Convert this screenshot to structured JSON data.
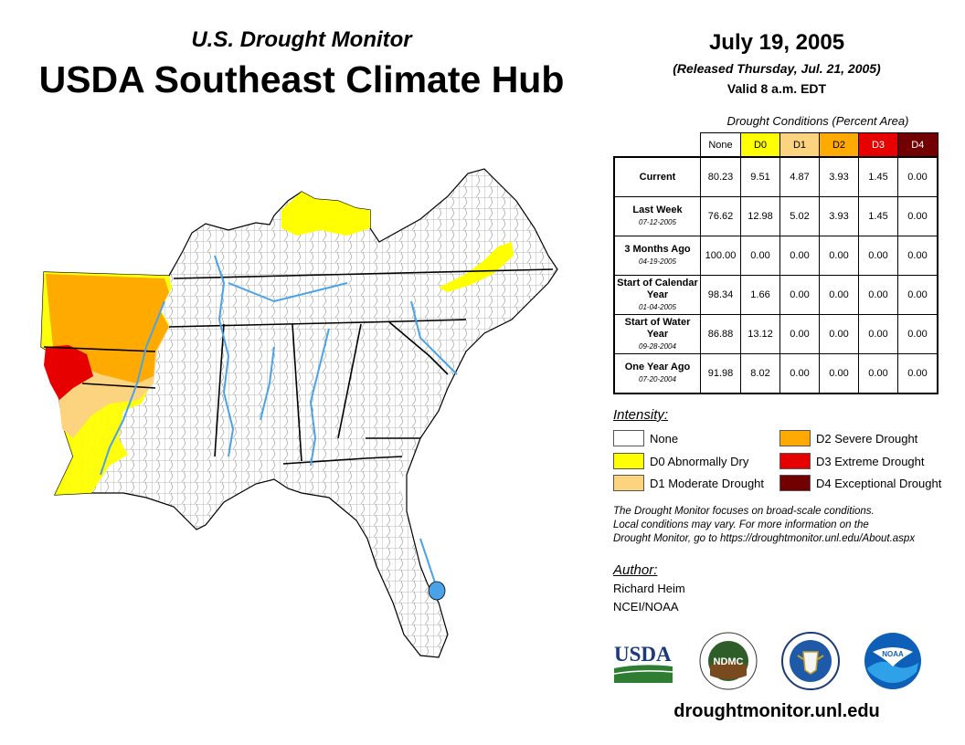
{
  "header": {
    "supertitle": "U.S. Drought Monitor",
    "title": "USDA Southeast Climate Hub",
    "date": "July 19, 2005",
    "released": "(Released Thursday, Jul. 21, 2005)",
    "valid": "Valid 8 a.m. EDT"
  },
  "table": {
    "caption": "Drought Conditions (Percent Area)",
    "columns": [
      "None",
      "D0",
      "D1",
      "D2",
      "D3",
      "D4"
    ],
    "column_colors": [
      "#ffffff",
      "#ffff00",
      "#fcd37f",
      "#ffaa00",
      "#e60000",
      "#730000"
    ],
    "rows": [
      {
        "label": "Current",
        "date": "",
        "values": [
          "80.23",
          "9.51",
          "4.87",
          "3.93",
          "1.45",
          "0.00"
        ]
      },
      {
        "label": "Last Week",
        "date": "07-12-2005",
        "values": [
          "76.62",
          "12.98",
          "5.02",
          "3.93",
          "1.45",
          "0.00"
        ]
      },
      {
        "label": "3 Months Ago",
        "date": "04-19-2005",
        "values": [
          "100.00",
          "0.00",
          "0.00",
          "0.00",
          "0.00",
          "0.00"
        ]
      },
      {
        "label": "Start of Calendar Year",
        "date": "01-04-2005",
        "values": [
          "98.34",
          "1.66",
          "0.00",
          "0.00",
          "0.00",
          "0.00"
        ]
      },
      {
        "label": "Start of Water Year",
        "date": "09-28-2004",
        "values": [
          "86.88",
          "13.12",
          "0.00",
          "0.00",
          "0.00",
          "0.00"
        ]
      },
      {
        "label": "One Year Ago",
        "date": "07-20-2004",
        "values": [
          "91.98",
          "8.02",
          "0.00",
          "0.00",
          "0.00",
          "0.00"
        ]
      }
    ]
  },
  "legend": {
    "title": "Intensity:",
    "items": [
      {
        "label": "None",
        "color": "#ffffff"
      },
      {
        "label": "D0 Abnormally Dry",
        "color": "#ffff00"
      },
      {
        "label": "D1 Moderate Drought",
        "color": "#fcd37f"
      },
      {
        "label": "D2 Severe Drought",
        "color": "#ffaa00"
      },
      {
        "label": "D3 Extreme Drought",
        "color": "#e60000"
      },
      {
        "label": "D4 Exceptional Drought",
        "color": "#730000"
      }
    ]
  },
  "note": {
    "line1": "The Drought Monitor focuses on broad-scale conditions.",
    "line2": "Local conditions may vary. For more information on the",
    "line3": "Drought Monitor, go to https://droughtmonitor.unl.edu/About.aspx"
  },
  "author": {
    "heading": "Author:",
    "name": "Richard Heim",
    "org": "NCEI/NOAA"
  },
  "logos": {
    "usda": "USDA",
    "ndmc": "NDMC",
    "noaa": "NOAA"
  },
  "footer": {
    "site": "droughtmonitor.unl.edu"
  },
  "map": {
    "water_color": "#4aa3e8",
    "border_color": "#000000"
  }
}
